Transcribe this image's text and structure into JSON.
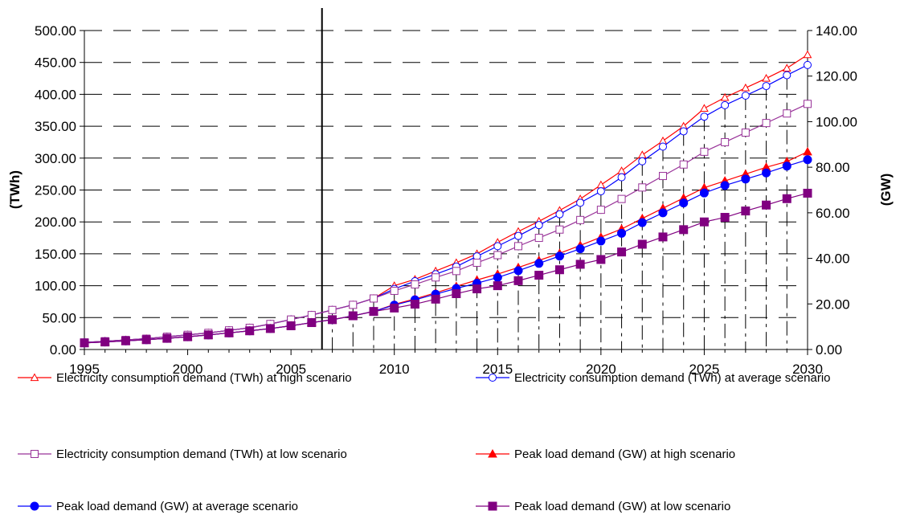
{
  "chart_data": {
    "type": "line",
    "title": "",
    "xlabel": "",
    "ylabel_left": "(TWh)",
    "ylabel_right": "(GW)",
    "xlim": [
      1995,
      2030
    ],
    "ylim_left": [
      0,
      500
    ],
    "ylim_right": [
      0,
      140
    ],
    "x_ticks": [
      "1995",
      "2000",
      "2005",
      "2010",
      "2015",
      "2020",
      "2025",
      "2030"
    ],
    "y_left_ticks": [
      "0.00",
      "50.00",
      "100.00",
      "150.00",
      "200.00",
      "250.00",
      "300.00",
      "350.00",
      "400.00",
      "450.00",
      "500.00"
    ],
    "y_right_ticks": [
      "0.00",
      "20.00",
      "40.00",
      "60.00",
      "80.00",
      "100.00",
      "120.00",
      "140.00"
    ],
    "grid": "horizontal dashed",
    "divider_x": 2006.5,
    "legend_position": "bottom",
    "x": [
      1995,
      1996,
      1997,
      1998,
      1999,
      2000,
      2001,
      2002,
      2003,
      2004,
      2005,
      2006,
      2007,
      2008,
      2009,
      2010,
      2011,
      2012,
      2013,
      2014,
      2015,
      2016,
      2017,
      2018,
      2019,
      2020,
      2021,
      2022,
      2023,
      2024,
      2025,
      2026,
      2027,
      2028,
      2029,
      2030
    ],
    "series": [
      {
        "name": "Electricity consumption demand (TWh) at high scenario",
        "axis": "left",
        "color": "#ff0000",
        "marker": "triangle",
        "filled": false,
        "values": [
          11,
          13,
          15,
          17,
          20,
          23,
          26,
          30,
          34,
          40,
          47,
          54,
          62,
          70,
          80,
          100,
          110,
          123,
          136,
          150,
          168,
          185,
          201,
          218,
          236,
          258,
          280,
          305,
          327,
          350,
          378,
          395,
          410,
          425,
          441,
          462
        ]
      },
      {
        "name": "Electricity consumption demand (TWh) at average scenario",
        "axis": "left",
        "color": "#0000ff",
        "marker": "circle",
        "filled": false,
        "values": [
          11,
          13,
          15,
          17,
          20,
          23,
          26,
          30,
          34,
          40,
          47,
          54,
          62,
          70,
          80,
          95,
          107,
          118,
          130,
          146,
          162,
          178,
          195,
          212,
          230,
          248,
          270,
          295,
          318,
          342,
          365,
          383,
          398,
          413,
          430,
          446
        ]
      },
      {
        "name": "Electricity consumption demand (TWh) at low scenario",
        "axis": "left",
        "color": "#993399",
        "marker": "square",
        "filled": false,
        "values": [
          11,
          13,
          15,
          17,
          20,
          23,
          26,
          30,
          34,
          40,
          47,
          54,
          62,
          70,
          80,
          92,
          102,
          113,
          123,
          136,
          148,
          162,
          175,
          188,
          203,
          219,
          236,
          254,
          272,
          290,
          310,
          325,
          340,
          355,
          370,
          385
        ]
      },
      {
        "name": "Peak load demand (GW) at high scenario",
        "axis": "right",
        "color": "#ff0000",
        "marker": "triangle",
        "filled": true,
        "values": [
          2.9,
          3.3,
          3.8,
          4.3,
          4.9,
          5.6,
          6.4,
          7.3,
          8.2,
          9.2,
          10.4,
          11.8,
          13.1,
          14.8,
          16.7,
          19.8,
          22.2,
          24.9,
          27.7,
          30.5,
          33.1,
          36.0,
          39.1,
          42.2,
          45.7,
          49.3,
          52.9,
          57.5,
          62.0,
          66.5,
          71.0,
          74.0,
          77.0,
          80.0,
          82.5,
          86.8
        ]
      },
      {
        "name": "Peak load demand (GW) at average scenario",
        "axis": "right",
        "color": "#0000ff",
        "marker": "circle",
        "filled": true,
        "values": [
          2.9,
          3.3,
          3.8,
          4.3,
          4.9,
          5.6,
          6.4,
          7.3,
          8.2,
          9.2,
          10.4,
          11.8,
          13.1,
          14.8,
          16.7,
          19.5,
          21.8,
          24.3,
          26.8,
          29.1,
          31.6,
          34.6,
          37.8,
          41.0,
          44.2,
          47.6,
          51.0,
          55.7,
          60.0,
          64.3,
          68.7,
          72.0,
          74.8,
          77.5,
          80.5,
          83.3
        ]
      },
      {
        "name": "Peak load demand (GW) at low scenario",
        "axis": "right",
        "color": "#800080",
        "marker": "square",
        "filled": true,
        "values": [
          2.9,
          3.3,
          3.8,
          4.3,
          4.9,
          5.6,
          6.4,
          7.3,
          8.2,
          9.2,
          10.4,
          11.8,
          13.1,
          14.8,
          16.7,
          18.2,
          19.9,
          22.1,
          24.5,
          26.6,
          28.0,
          30.2,
          32.6,
          35.0,
          37.4,
          39.5,
          42.8,
          46.2,
          49.4,
          52.6,
          56.0,
          58.0,
          60.8,
          63.4,
          66.2,
          68.6
        ]
      }
    ]
  }
}
